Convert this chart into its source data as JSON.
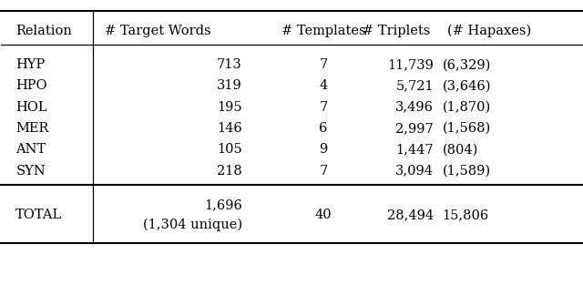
{
  "headers": [
    "Relation",
    "# Target Words",
    "# Templates",
    "# Triplets",
    "(# Hapaxes)"
  ],
  "rows": [
    [
      "HYP",
      "713",
      "7",
      "11,739",
      "(6,329)"
    ],
    [
      "HPO",
      "319",
      "4",
      "5,721",
      "(3,646)"
    ],
    [
      "HOL",
      "195",
      "7",
      "3,496",
      "(1,870)"
    ],
    [
      "MER",
      "146",
      "6",
      "2,997",
      "(1,568)"
    ],
    [
      "ANT",
      "105",
      "9",
      "1,447",
      "(804)"
    ],
    [
      "SYN",
      "218",
      "7",
      "3,094",
      "(1,589)"
    ]
  ],
  "total_row_label": "TOTAL",
  "total_target_words_line1": "1,696",
  "total_target_words_line2": "(1,304 unique)",
  "total_templates": "40",
  "total_triplets": "28,494",
  "total_hapaxes": "15,806",
  "bg_color": "#ffffff",
  "text_color": "#000000",
  "font_size": 10.5,
  "header_font_size": 10.5
}
